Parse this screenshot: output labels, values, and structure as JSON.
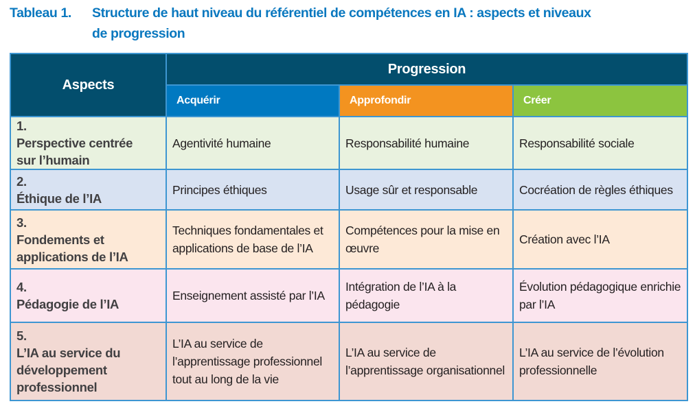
{
  "title": {
    "number": "Tableau 1.",
    "line1": "Structure de haut niveau du référentiel de compétences en IA : aspects et niveaux",
    "line2": "de progression"
  },
  "table": {
    "aspects_header": "Aspects",
    "progression_header": "Progression",
    "levels": [
      {
        "label": "Acquérir",
        "color": "#0079c1"
      },
      {
        "label": "Approfondir",
        "color": "#f39320"
      },
      {
        "label": "Créer",
        "color": "#8cc43f"
      }
    ],
    "rows": [
      {
        "num": "1.",
        "aspect": "Perspective centrée sur l’humain",
        "cells": [
          "Agentivité humaine",
          "Responsabilité humaine",
          "Responsabilité sociale"
        ],
        "color": "#e9f2df"
      },
      {
        "num": "2.",
        "aspect": "Éthique de l’IA",
        "cells": [
          "Principes éthiques",
          "Usage sûr et responsable",
          "Cocréation de règles éthiques"
        ],
        "color": "#d8e2f2"
      },
      {
        "num": "3.",
        "aspect": "Fondements et applications de l’IA",
        "cells": [
          "Techniques fondamentales et applications de base de l’IA",
          "Compétences pour la mise en œuvre",
          "Création avec l’IA"
        ],
        "color": "#fde9d7"
      },
      {
        "num": "4.",
        "aspect": "Pédagogie de l’IA",
        "cells": [
          "Enseignement assisté par l’IA",
          "Intégration de l’IA à la pédagogie",
          "Évolution pédagogique enrichie par l’IA"
        ],
        "color": "#fbe5ee"
      },
      {
        "num": "5.",
        "aspect": "L’IA au service du développement professionnel",
        "cells": [
          "L’IA au service de l’apprentissage professionnel tout au long de la vie",
          "L’IA au service de l’apprentissage organisationnel",
          "L’IA au service de l’évolution professionnelle"
        ],
        "color": "#f2d9d3"
      }
    ]
  }
}
